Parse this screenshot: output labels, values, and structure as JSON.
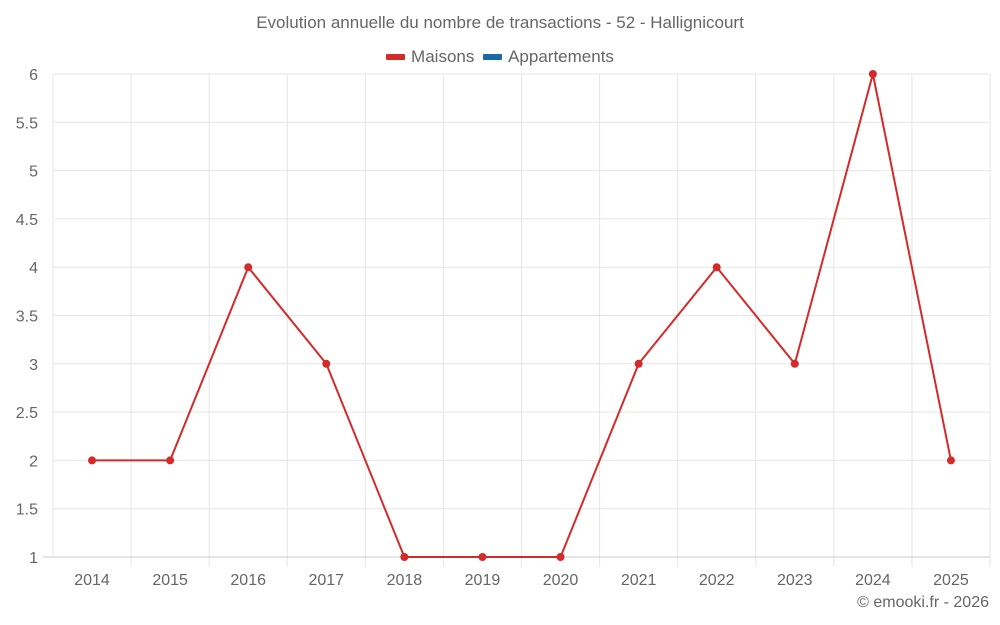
{
  "title": "Evolution annuelle du nombre de transactions - 52 - Hallignicourt",
  "legend": [
    {
      "label": "Maisons",
      "color": "#d42a2a"
    },
    {
      "label": "Appartements",
      "color": "#1a6aa6"
    }
  ],
  "credits": "© emooki.fr - 2026",
  "chart_data": {
    "type": "line",
    "title": "Evolution annuelle du nombre de transactions - 52 - Hallignicourt",
    "xlabel": "",
    "ylabel": "",
    "categories": [
      "2014",
      "2015",
      "2016",
      "2017",
      "2018",
      "2019",
      "2020",
      "2021",
      "2022",
      "2023",
      "2024",
      "2025"
    ],
    "series": [
      {
        "name": "Maisons",
        "color": "#d42a2a",
        "values": [
          2,
          2,
          4,
          3,
          1,
          1,
          1,
          3,
          4,
          3,
          6,
          2
        ]
      },
      {
        "name": "Appartements",
        "color": "#1a6aa6",
        "values": []
      }
    ],
    "ylim": [
      1,
      6
    ],
    "yticks": [
      "1",
      "1.5",
      "2",
      "2.5",
      "3",
      "3.5",
      "4",
      "4.5",
      "5",
      "5.5",
      "6"
    ],
    "grid": true,
    "legend_position": "top"
  }
}
